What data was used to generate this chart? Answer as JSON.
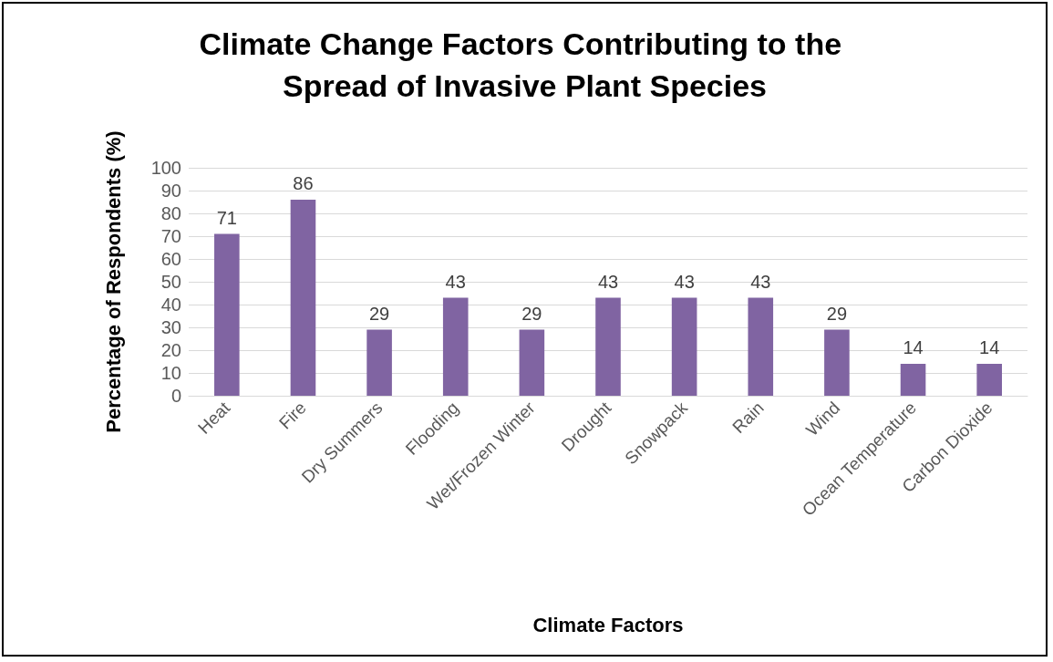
{
  "chart_data": {
    "type": "bar",
    "title": "Climate Change Factors Contributing to the Spread of Invasive Plant Species",
    "xlabel": "Climate Factors",
    "ylabel": "Percentage of Respondents (%)",
    "categories": [
      "Heat",
      "Fire",
      "Dry Summers",
      "Flooding",
      "Wet/Frozen Winter",
      "Drought",
      "Snowpack",
      "Rain",
      "Wind",
      "Ocean Temperature",
      "Carbon Dioxide"
    ],
    "values": [
      71,
      86,
      29,
      43,
      29,
      43,
      43,
      43,
      29,
      14,
      14
    ],
    "color": "#8064a2",
    "ylim": [
      0,
      100
    ],
    "yticks": [
      0,
      10,
      20,
      30,
      40,
      50,
      60,
      70,
      80,
      90,
      100
    ],
    "grid": "y",
    "data_labels": true
  }
}
